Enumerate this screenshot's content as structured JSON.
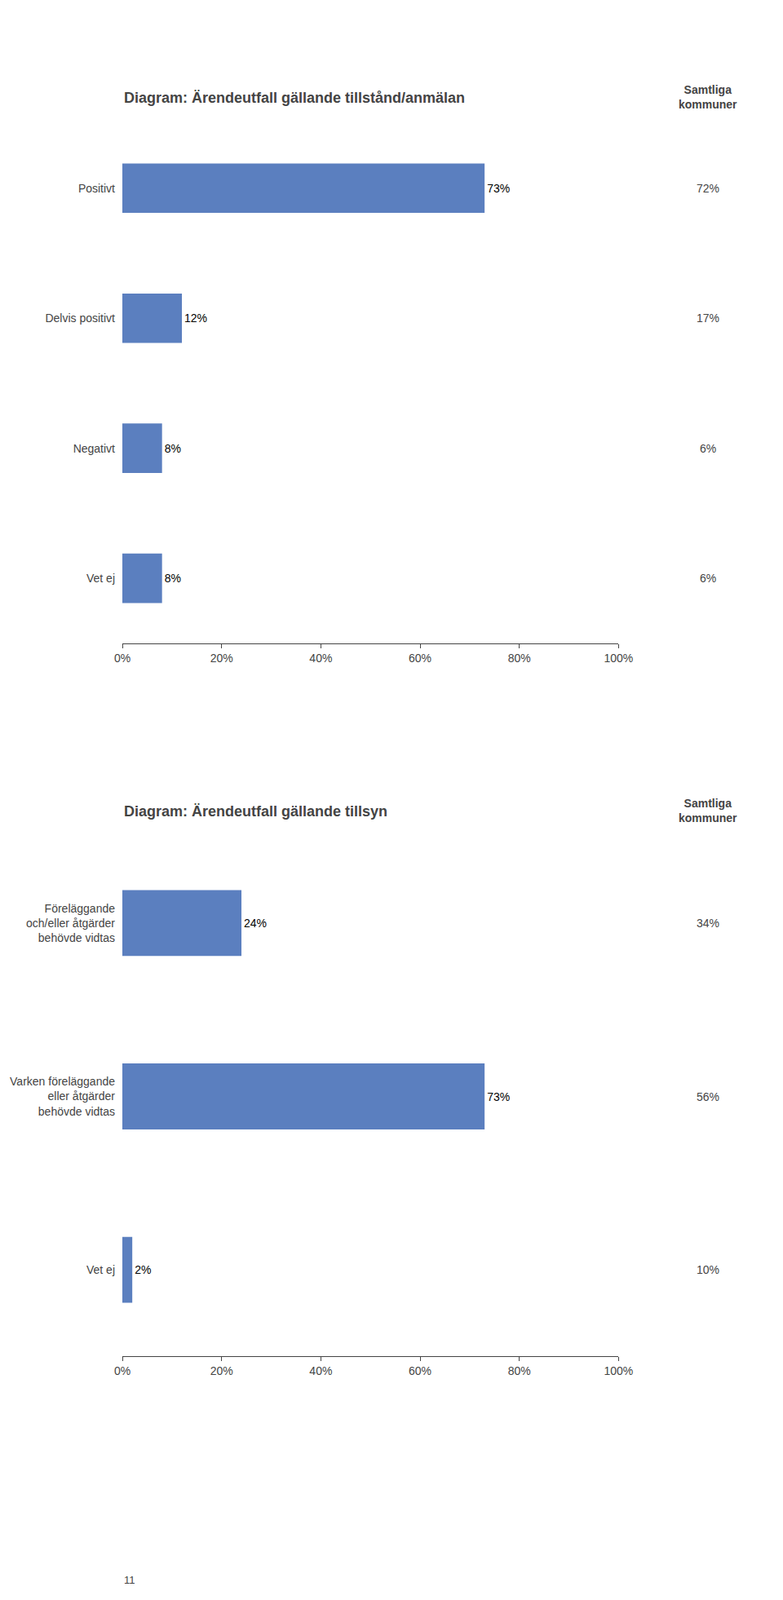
{
  "chart_data": [
    {
      "type": "bar",
      "orientation": "horizontal",
      "title": "Diagram: Ärendeutfall gällande tillstånd/anmälan",
      "categories": [
        "Positivt",
        "Delvis positivt",
        "Negativt",
        "Vet ej"
      ],
      "values": [
        73,
        12,
        8,
        8
      ],
      "value_labels": [
        "73%",
        "12%",
        "8%",
        "8%"
      ],
      "data_labels": true,
      "color": "#5b7fbf",
      "xlim": [
        0,
        100
      ],
      "xticks": [
        {
          "value": 0,
          "label": "0%"
        },
        {
          "value": 20,
          "label": "20%"
        },
        {
          "value": 40,
          "label": "40%"
        },
        {
          "value": 60,
          "label": "60%"
        },
        {
          "value": 80,
          "label": "80%"
        },
        {
          "value": 100,
          "label": "100%"
        }
      ],
      "grid": false,
      "annotations": [
        {
          "text": "Samtliga\nkommuner"
        },
        {
          "category": "Positivt",
          "text": "72%"
        },
        {
          "category": "Delvis positivt",
          "text": "17%"
        },
        {
          "category": "Negativt",
          "text": "6%"
        },
        {
          "category": "Vet ej",
          "text": "6%"
        }
      ]
    },
    {
      "type": "bar",
      "orientation": "horizontal",
      "title": "Diagram: Ärendeutfall gällande tillsyn",
      "categories": [
        "Föreläggande\noch/eller åtgärder\nbehövde vidtas",
        "Varken föreläggande\neller åtgärder\nbehövde vidtas",
        "Vet ej"
      ],
      "values": [
        24,
        73,
        2
      ],
      "value_labels": [
        "24%",
        "73%",
        "2%"
      ],
      "data_labels": true,
      "color": "#5b7fbf",
      "xlim": [
        0,
        100
      ],
      "xticks": [
        {
          "value": 0,
          "label": "0%"
        },
        {
          "value": 20,
          "label": "20%"
        },
        {
          "value": 40,
          "label": "40%"
        },
        {
          "value": 60,
          "label": "60%"
        },
        {
          "value": 80,
          "label": "80%"
        },
        {
          "value": 100,
          "label": "100%"
        }
      ],
      "grid": false,
      "annotations": [
        {
          "text": "Samtliga\nkommuner"
        },
        {
          "category": "Föreläggande\noch/eller åtgärder\nbehövde vidtas",
          "text": "34%"
        },
        {
          "category": "Varken föreläggande\neller åtgärder\nbehövde vidtas",
          "text": "56%"
        },
        {
          "category": "Vet ej",
          "text": "10%"
        }
      ]
    }
  ],
  "page_number": "11"
}
